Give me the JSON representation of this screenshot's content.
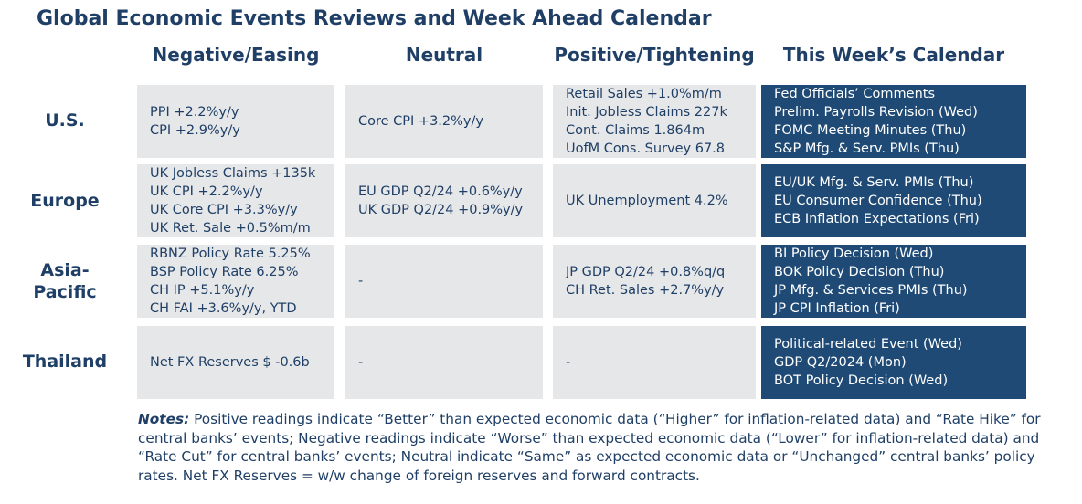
{
  "title": "Global Economic Events Reviews and Week Ahead Calendar",
  "columns": [
    "Negative/Easing",
    "Neutral",
    "Positive/Tightening",
    "This Week’s Calendar"
  ],
  "rows": [
    {
      "label": "U.S.",
      "negative": [
        "PPI +2.2%y/y",
        "CPI +2.9%y/y"
      ],
      "neutral": [
        "Core CPI +3.2%y/y"
      ],
      "positive": [
        "Retail Sales +1.0%m/m",
        "Init. Jobless Claims 227k",
        "Cont. Claims 1.864m",
        "UofM Cons. Survey 67.8"
      ],
      "calendar": [
        "Fed Officials’ Comments",
        "Prelim. Payrolls Revision (Wed)",
        "FOMC Meeting Minutes (Thu)",
        "S&P Mfg. & Serv. PMIs (Thu)"
      ]
    },
    {
      "label": "Europe",
      "negative": [
        "UK Jobless Claims +135k",
        "UK CPI +2.2%y/y",
        "UK Core CPI +3.3%y/y",
        "UK Ret. Sale +0.5%m/m"
      ],
      "neutral": [
        "EU GDP Q2/24 +0.6%y/y",
        "UK GDP Q2/24 +0.9%y/y"
      ],
      "positive": [
        "UK Unemployment 4.2%"
      ],
      "calendar": [
        "EU/UK Mfg. & Serv. PMIs (Thu)",
        "EU Consumer Confidence (Thu)",
        "ECB Inflation Expectations (Fri)"
      ]
    },
    {
      "label": "Asia-Pacific",
      "label_lines": [
        "Asia-",
        "Pacific"
      ],
      "negative": [
        "RBNZ Policy Rate 5.25%",
        "BSP Policy Rate 6.25%",
        "CH IP +5.1%y/y",
        "CH FAI +3.6%y/y, YTD"
      ],
      "neutral": [
        "-"
      ],
      "positive": [
        "JP GDP Q2/24 +0.8%q/q",
        "CH Ret. Sales +2.7%y/y"
      ],
      "calendar": [
        "BI Policy Decision (Wed)",
        "BOK Policy Decision (Thu)",
        "JP Mfg. & Services PMIs (Thu)",
        "JP CPI Inflation (Fri)"
      ]
    },
    {
      "label": "Thailand",
      "negative": [
        "Net FX Reserves $ -0.6b"
      ],
      "neutral": [
        "-"
      ],
      "positive": [
        "-"
      ],
      "calendar": [
        "Political-related Event (Wed)",
        "GDP Q2/2024 (Mon)",
        "BOT Policy Decision (Wed)"
      ]
    }
  ],
  "notes": {
    "label": "Notes:",
    "text": " Positive readings indicate “Better” than expected economic data (“Higher” for inflation-related data) and “Rate Hike” for central banks’ events; Negative readings indicate “Worse” than expected economic data (“Lower” for inflation-related data) and “Rate Cut” for central banks’ events; Neutral indicate “Same” as expected economic data or “Unchanged” central banks’ policy rates. Net FX Reserves = w/w change of foreign reserves and forward contracts."
  },
  "colors": {
    "heading": "#1f3f66",
    "grey_cell": "#e6e7e9",
    "calendar_cell": "#1e4a75",
    "calendar_text": "#ffffff"
  }
}
